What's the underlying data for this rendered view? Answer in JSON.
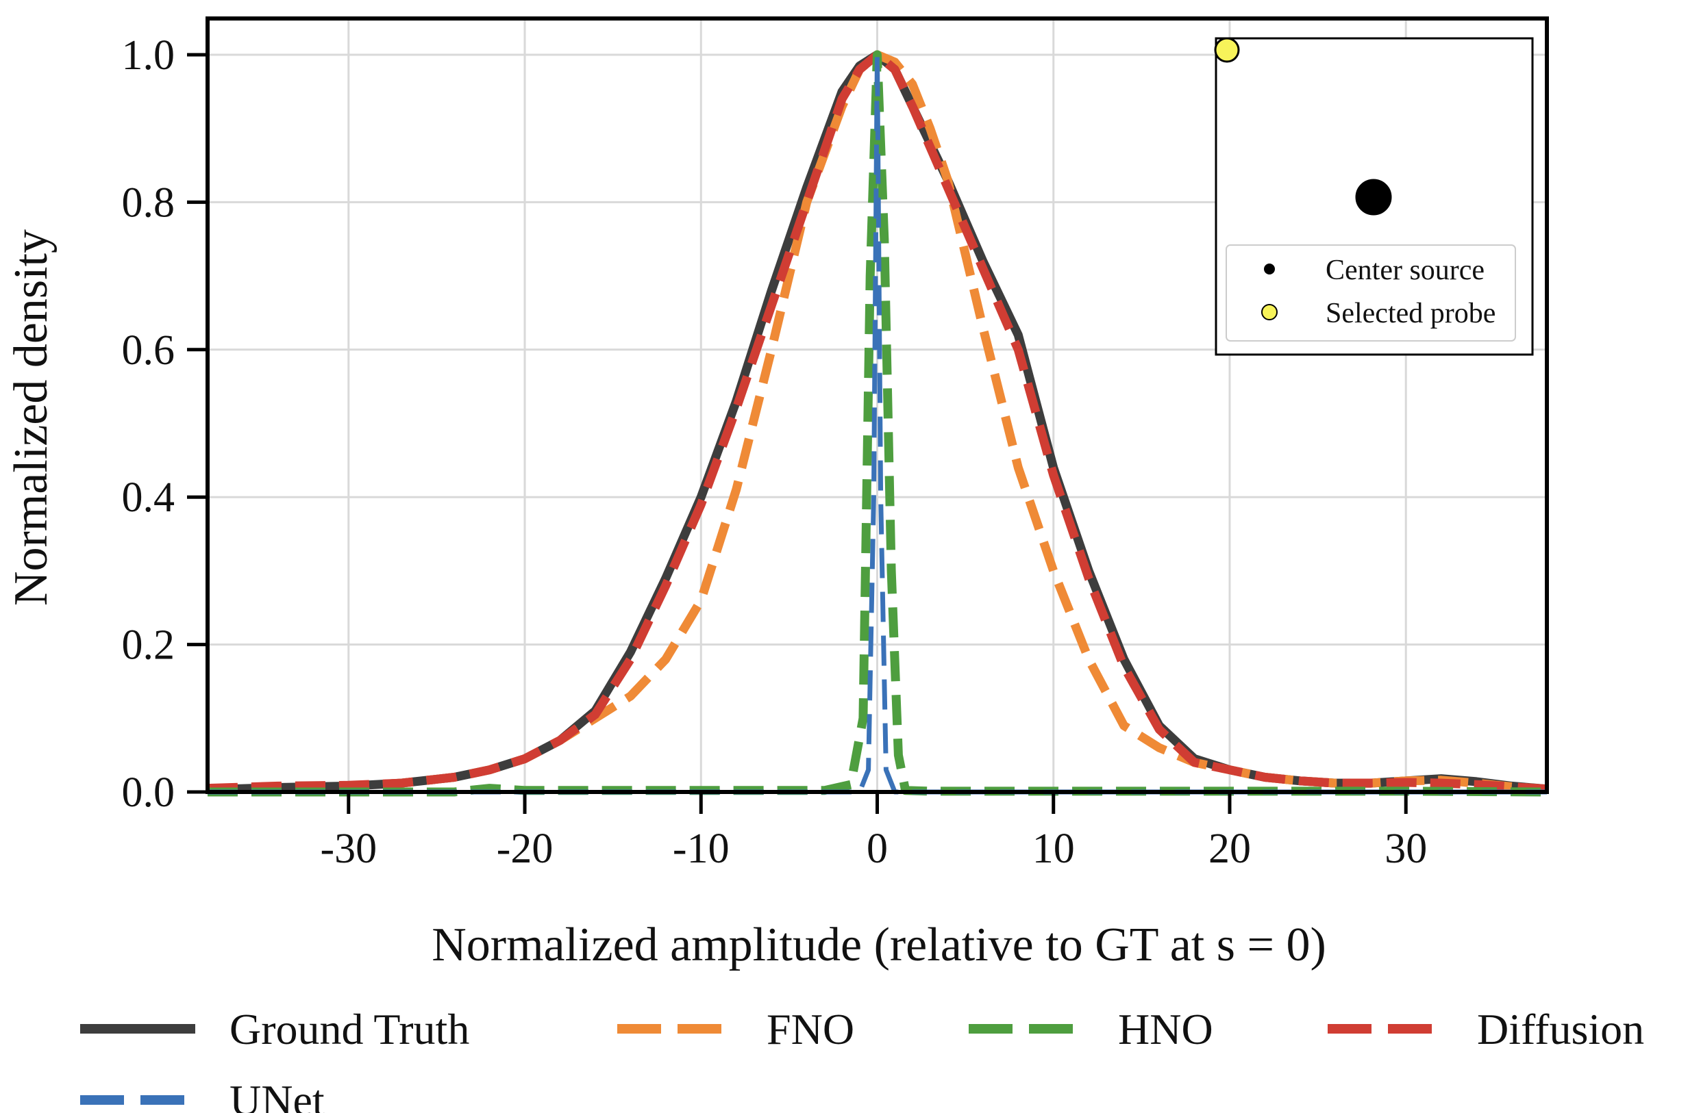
{
  "chart_data": {
    "type": "line",
    "title": "",
    "xlabel": "Normalized amplitude (relative to GT at s = 0)",
    "ylabel": "Normalized density",
    "xlim": [
      -38,
      38
    ],
    "ylim": [
      0,
      1.05
    ],
    "x_ticks": [
      -30,
      -20,
      -10,
      0,
      10,
      20,
      30
    ],
    "x_tick_labels": [
      "-30",
      "-20",
      "-10",
      "0",
      "10",
      "20",
      "30"
    ],
    "y_ticks": [
      0.0,
      0.2,
      0.4,
      0.6,
      0.8,
      1.0
    ],
    "y_tick_labels": [
      "0.0",
      "0.2",
      "0.4",
      "0.6",
      "0.8",
      "1.0"
    ],
    "grid": true,
    "legend_position": "bottom",
    "series": [
      {
        "name": "Ground Truth",
        "color": "#3d3d3d",
        "style": "solid",
        "x": [
          -38,
          -34,
          -30,
          -27,
          -24,
          -22,
          -20,
          -18,
          -16,
          -14,
          -12,
          -10,
          -8,
          -6,
          -4,
          -2,
          -1,
          0,
          1,
          2,
          4,
          6,
          8,
          10,
          12,
          14,
          16,
          18,
          20,
          22,
          24,
          26,
          28,
          30,
          32,
          34,
          36,
          38
        ],
        "values": [
          0.003,
          0.006,
          0.008,
          0.012,
          0.02,
          0.03,
          0.045,
          0.07,
          0.11,
          0.19,
          0.29,
          0.4,
          0.53,
          0.68,
          0.82,
          0.95,
          0.985,
          1.0,
          0.98,
          0.93,
          0.83,
          0.72,
          0.62,
          0.44,
          0.3,
          0.18,
          0.09,
          0.045,
          0.03,
          0.02,
          0.015,
          0.012,
          0.012,
          0.015,
          0.018,
          0.014,
          0.008,
          0.004
        ]
      },
      {
        "name": "FNO",
        "color": "#ef8a36",
        "style": "dashed",
        "x": [
          -38,
          -34,
          -30,
          -27,
          -24,
          -22,
          -20,
          -18,
          -16,
          -14,
          -12,
          -10,
          -8,
          -6,
          -4,
          -2,
          -1,
          0,
          1,
          2,
          3,
          4,
          6,
          8,
          10,
          12,
          14,
          16,
          18,
          20,
          22,
          24,
          26,
          28,
          30,
          32,
          34,
          36,
          38
        ],
        "values": [
          0.003,
          0.006,
          0.008,
          0.012,
          0.02,
          0.03,
          0.045,
          0.07,
          0.1,
          0.13,
          0.18,
          0.26,
          0.41,
          0.6,
          0.8,
          0.93,
          0.98,
          1.0,
          0.99,
          0.96,
          0.9,
          0.83,
          0.63,
          0.44,
          0.3,
          0.18,
          0.09,
          0.06,
          0.04,
          0.03,
          0.02,
          0.015,
          0.012,
          0.012,
          0.015,
          0.016,
          0.012,
          0.007,
          0.004
        ]
      },
      {
        "name": "HNO",
        "color": "#4e9e3f",
        "style": "dashed",
        "x": [
          -38,
          -30,
          -24,
          -22,
          -20,
          -10,
          -3,
          -1.5,
          -0.8,
          -0.4,
          0,
          0.4,
          0.8,
          1.2,
          1.6,
          3,
          10,
          20,
          30,
          38
        ],
        "values": [
          0.0,
          0.0,
          0.0,
          0.005,
          0.002,
          0.002,
          0.002,
          0.01,
          0.1,
          0.7,
          1.0,
          0.75,
          0.3,
          0.05,
          0.002,
          0.001,
          0.001,
          0.001,
          0.001,
          0.0
        ]
      },
      {
        "name": "Diffusion",
        "color": "#d03d33",
        "style": "dashed",
        "x": [
          -38,
          -34,
          -30,
          -27,
          -24,
          -22,
          -20,
          -18,
          -16,
          -14,
          -12,
          -10,
          -8,
          -6,
          -4,
          -2,
          -1,
          0,
          1,
          2,
          4,
          6,
          8,
          10,
          12,
          14,
          16,
          18,
          20,
          22,
          24,
          26,
          28,
          30,
          32,
          34,
          36,
          38
        ],
        "values": [
          0.005,
          0.008,
          0.009,
          0.012,
          0.02,
          0.03,
          0.045,
          0.07,
          0.105,
          0.18,
          0.28,
          0.39,
          0.52,
          0.66,
          0.8,
          0.94,
          0.98,
          1.0,
          0.98,
          0.93,
          0.82,
          0.71,
          0.6,
          0.43,
          0.29,
          0.17,
          0.085,
          0.04,
          0.03,
          0.02,
          0.015,
          0.012,
          0.012,
          0.013,
          0.012,
          0.01,
          0.007,
          0.004
        ]
      },
      {
        "name": "UNet",
        "color": "#3a72b8",
        "style": "dashed",
        "x": [
          -38,
          -10,
          -1,
          -0.5,
          -0.2,
          0,
          0.2,
          0.5,
          1,
          10,
          38
        ],
        "values": [
          0.0,
          0.0,
          0.0,
          0.03,
          0.4,
          1.0,
          0.4,
          0.03,
          0.0,
          0.0,
          0.0
        ]
      }
    ],
    "inset": {
      "legend_entries": [
        "Center source",
        "Selected probe"
      ],
      "center_source_color": "#000000",
      "selected_probe_color": "#f7f35a"
    }
  }
}
